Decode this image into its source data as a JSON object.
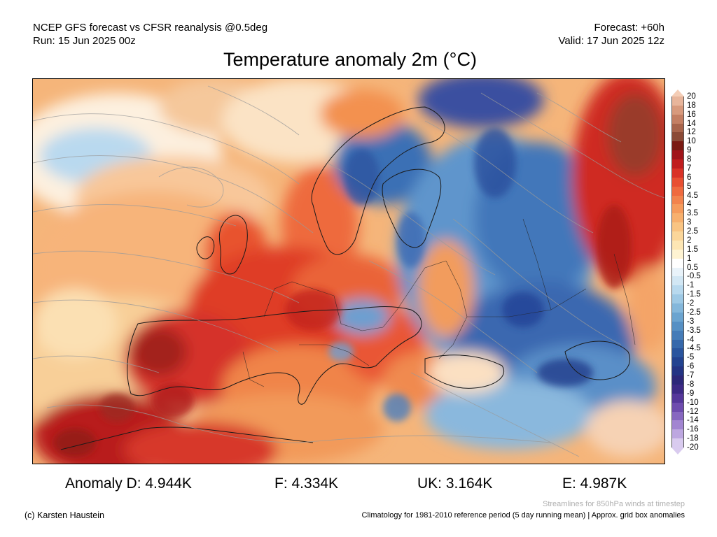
{
  "header": {
    "line1": "NCEP GFS forecast vs CFSR reanalysis @0.5deg",
    "line2": "Run: 15 Jun 2025 00z",
    "forecast": "Forecast: +60h",
    "valid": "Valid: 17 Jun 2025 12z"
  },
  "title": "Temperature anomaly 2m (°C)",
  "legend": {
    "levels": [
      {
        "label": "20",
        "color": "#f4cdb6"
      },
      {
        "label": "18",
        "color": "#e8b59b"
      },
      {
        "label": "16",
        "color": "#d89a7d"
      },
      {
        "label": "14",
        "color": "#c47f63"
      },
      {
        "label": "12",
        "color": "#a8644b"
      },
      {
        "label": "10",
        "color": "#8b4a36"
      },
      {
        "label": "9",
        "color": "#7a1a12"
      },
      {
        "label": "8",
        "color": "#a0141a"
      },
      {
        "label": "7",
        "color": "#c01d1e"
      },
      {
        "label": "6",
        "color": "#d93227"
      },
      {
        "label": "5",
        "color": "#e84f32"
      },
      {
        "label": "4.5",
        "color": "#ef6a3f"
      },
      {
        "label": "4",
        "color": "#f2834d"
      },
      {
        "label": "3.5",
        "color": "#f59b5c"
      },
      {
        "label": "3",
        "color": "#f7b06e"
      },
      {
        "label": "2.5",
        "color": "#f9c483"
      },
      {
        "label": "2",
        "color": "#fbd69a"
      },
      {
        "label": "1.5",
        "color": "#fde6b4"
      },
      {
        "label": "1",
        "color": "#fef3d2"
      },
      {
        "label": "0.5",
        "color": "#ffffff"
      },
      {
        "label": "-0.5",
        "color": "#e9f3fa"
      },
      {
        "label": "-1",
        "color": "#d2e7f4"
      },
      {
        "label": "-1.5",
        "color": "#b8d9ee"
      },
      {
        "label": "-2",
        "color": "#9ec9e5"
      },
      {
        "label": "-2.5",
        "color": "#84b7db"
      },
      {
        "label": "-3",
        "color": "#6ba4d0"
      },
      {
        "label": "-3.5",
        "color": "#5690c4"
      },
      {
        "label": "-4",
        "color": "#457cb8"
      },
      {
        "label": "-4.5",
        "color": "#3668ab"
      },
      {
        "label": "-5",
        "color": "#2a559e"
      },
      {
        "label": "-6",
        "color": "#234390"
      },
      {
        "label": "-7",
        "color": "#243484"
      },
      {
        "label": "-8",
        "color": "#2d2879"
      },
      {
        "label": "-9",
        "color": "#3d2a85"
      },
      {
        "label": "-10",
        "color": "#55379a"
      },
      {
        "label": "-12",
        "color": "#6e4cae"
      },
      {
        "label": "-14",
        "color": "#8767c0"
      },
      {
        "label": "-16",
        "color": "#a285d1"
      },
      {
        "label": "-18",
        "color": "#bda7e0"
      },
      {
        "label": "-20",
        "color": "#d9cbef"
      }
    ]
  },
  "stats": [
    {
      "label": "Anomaly D: 4.944K"
    },
    {
      "label": "F: 4.334K"
    },
    {
      "label": "UK: 3.164K"
    },
    {
      "label": "E: 4.987K"
    }
  ],
  "footer": {
    "streamlines": "Streamlines for 850hPa winds at timestep",
    "copyright": "(c) Karsten Haustein",
    "climatology": "Climatology for 1981-2010 reference period (5 day running mean) | Approx. grid box anomalies"
  },
  "colors": {
    "ocean_warm": "#f7b26f",
    "ocean_neutral": "#fdf1dc",
    "land_hot": "#e0442d",
    "land_cold": "#3f73b6",
    "coastline": "#1a1a1a",
    "streamline": "#9a9a9a"
  }
}
